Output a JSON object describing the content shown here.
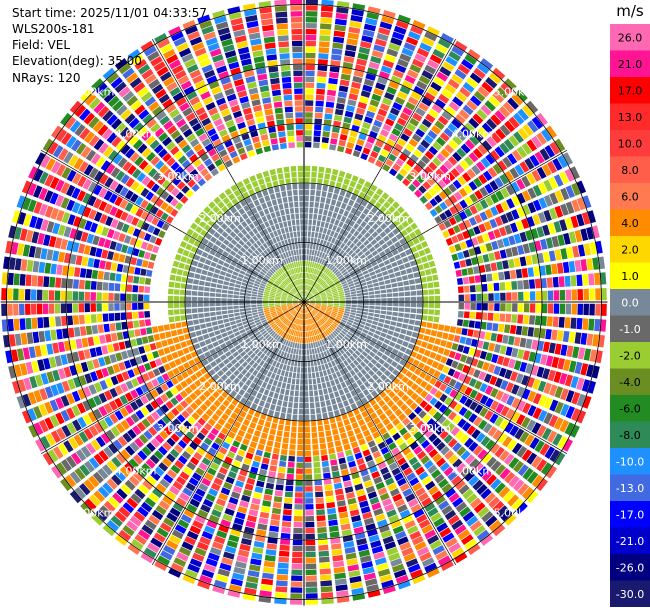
{
  "header": {
    "start_time": "Start time: 2025/11/01 04:33:57",
    "instrument": "WLS200s-181",
    "field": "Field: VEL",
    "elevation": "Elevation(deg): 35.00",
    "nrays": "NRays: 120"
  },
  "chart_data": {
    "type": "heatmap",
    "projection": "polar-ppi",
    "grid": true,
    "range_rings_km": [
      1.0,
      2.0,
      3.0,
      4.0,
      5.0
    ],
    "range_ring_labels": [
      "1.00km",
      "2.00km",
      "3.00km",
      "4.00km",
      "5.00km"
    ],
    "radial_spokes_deg": [
      0,
      30,
      60,
      90,
      120,
      150,
      180,
      210,
      240,
      270,
      300,
      330
    ],
    "max_range_km": 5.1,
    "n_rays": 120,
    "gates_per_km": 10,
    "bands_vel_ms": [
      {
        "r_min_km": 0.0,
        "r_max_km": 0.7,
        "sector": "north",
        "vel": -2.0
      },
      {
        "r_min_km": 0.0,
        "r_max_km": 0.75,
        "sector": "south",
        "vel": 3.5
      },
      {
        "r_min_km": 0.7,
        "r_max_km": 2.0,
        "sector": "all",
        "vel": 0.0
      },
      {
        "r_min_km": 2.0,
        "r_max_km": 2.3,
        "sector": "north",
        "vel": -2.5
      },
      {
        "r_min_km": 2.0,
        "r_max_km": 2.6,
        "sector": "south",
        "vel": 3.5
      },
      {
        "r_min_km": 2.6,
        "r_max_km": 5.1,
        "sector": "all",
        "vel": "noise"
      }
    ],
    "colorbar": {
      "unit": "m/s",
      "ticks": [
        "26.0",
        "21.0",
        "17.0",
        "13.0",
        "10.0",
        "8.0",
        "6.0",
        "4.0",
        "2.0",
        "1.0",
        "0.0",
        "-1.0",
        "-2.0",
        "-4.0",
        "-6.0",
        "-8.0",
        "-10.0",
        "-13.0",
        "-17.0",
        "-21.0",
        "-26.0",
        "-30.0"
      ],
      "colors": [
        "#ff69b4",
        "#ff1493",
        "#ff0000",
        "#ff2a2a",
        "#ff3c3c",
        "#ff5e4a",
        "#ff7a50",
        "#ff8c00",
        "#ffd700",
        "#ffff00",
        "#778899",
        "#696969",
        "#9acd32",
        "#6b8e23",
        "#228b22",
        "#2e8b57",
        "#1e90ff",
        "#4169e1",
        "#0000ff",
        "#0000cd",
        "#000080",
        "#191970"
      ]
    }
  }
}
